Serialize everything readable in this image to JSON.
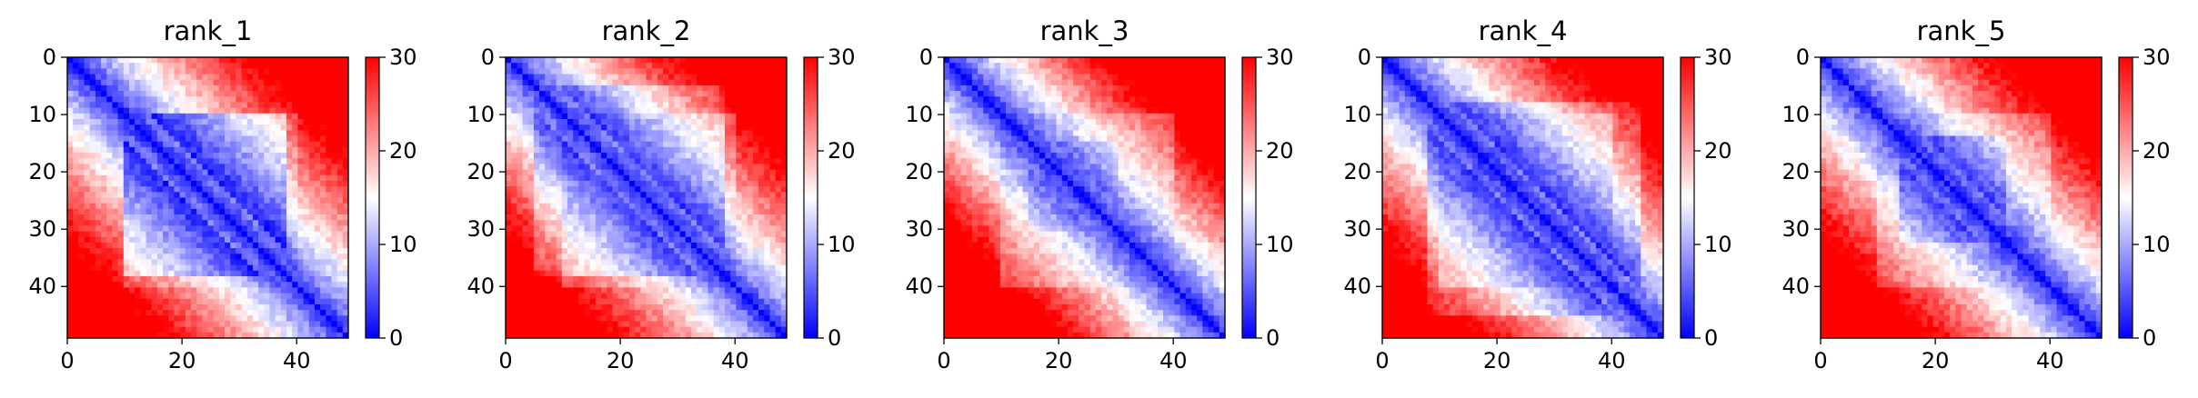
{
  "chart_data": [
    {
      "type": "heatmap",
      "title": "rank_1",
      "matrix_size": 50,
      "xlim": [
        0,
        49
      ],
      "ylim": [
        49,
        0
      ],
      "x_ticks": [
        0,
        20,
        40
      ],
      "y_ticks": [
        0,
        10,
        20,
        30,
        40
      ],
      "colorbar": {
        "range": [
          0,
          30
        ],
        "ticks": [
          0,
          10,
          20,
          30
        ],
        "colormap": "bwr"
      },
      "structure": {
        "band": 2.8,
        "grow": 0.33,
        "cap": 15,
        "block": [
          10,
          38
        ],
        "block_depth": 6,
        "corner_boost": 6
      }
    },
    {
      "type": "heatmap",
      "title": "rank_2",
      "matrix_size": 50,
      "xlim": [
        0,
        49
      ],
      "ylim": [
        49,
        0
      ],
      "x_ticks": [
        0,
        20,
        40
      ],
      "y_ticks": [
        0,
        10,
        20,
        30,
        40
      ],
      "colorbar": {
        "range": [
          0,
          30
        ],
        "ticks": [
          0,
          10,
          20,
          30
        ],
        "colormap": "bwr"
      },
      "structure": {
        "band": 3.0,
        "grow": 0.32,
        "cap": 14,
        "block": [
          5,
          38
        ],
        "block_depth": 5,
        "corner_boost": 7
      }
    },
    {
      "type": "heatmap",
      "title": "rank_3",
      "matrix_size": 50,
      "xlim": [
        0,
        49
      ],
      "ylim": [
        49,
        0
      ],
      "x_ticks": [
        0,
        20,
        40
      ],
      "y_ticks": [
        0,
        10,
        20,
        30,
        40
      ],
      "colorbar": {
        "range": [
          0,
          30
        ],
        "ticks": [
          0,
          10,
          20,
          30
        ],
        "colormap": "bwr"
      },
      "structure": {
        "band": 2.6,
        "grow": 0.42,
        "cap": 18,
        "block": [
          15,
          30
        ],
        "block_depth": 2,
        "corner_boost": 9
      }
    },
    {
      "type": "heatmap",
      "title": "rank_4",
      "matrix_size": 50,
      "xlim": [
        0,
        49
      ],
      "ylim": [
        49,
        0
      ],
      "x_ticks": [
        0,
        20,
        40
      ],
      "y_ticks": [
        0,
        10,
        20,
        30,
        40
      ],
      "colorbar": {
        "range": [
          0,
          30
        ],
        "ticks": [
          0,
          10,
          20,
          30
        ],
        "colormap": "bwr"
      },
      "structure": {
        "band": 2.7,
        "grow": 0.36,
        "cap": 15,
        "block": [
          8,
          45
        ],
        "block_depth": 5,
        "corner_boost": 6
      }
    },
    {
      "type": "heatmap",
      "title": "rank_5",
      "matrix_size": 50,
      "xlim": [
        0,
        49
      ],
      "ylim": [
        49,
        0
      ],
      "x_ticks": [
        0,
        20,
        40
      ],
      "y_ticks": [
        0,
        10,
        20,
        30,
        40
      ],
      "colorbar": {
        "range": [
          0,
          30
        ],
        "ticks": [
          0,
          10,
          20,
          30
        ],
        "colormap": "bwr"
      },
      "structure": {
        "band": 2.6,
        "grow": 0.38,
        "cap": 16,
        "block": [
          14,
          32
        ],
        "block_depth": 4,
        "corner_boost": 8
      }
    }
  ]
}
